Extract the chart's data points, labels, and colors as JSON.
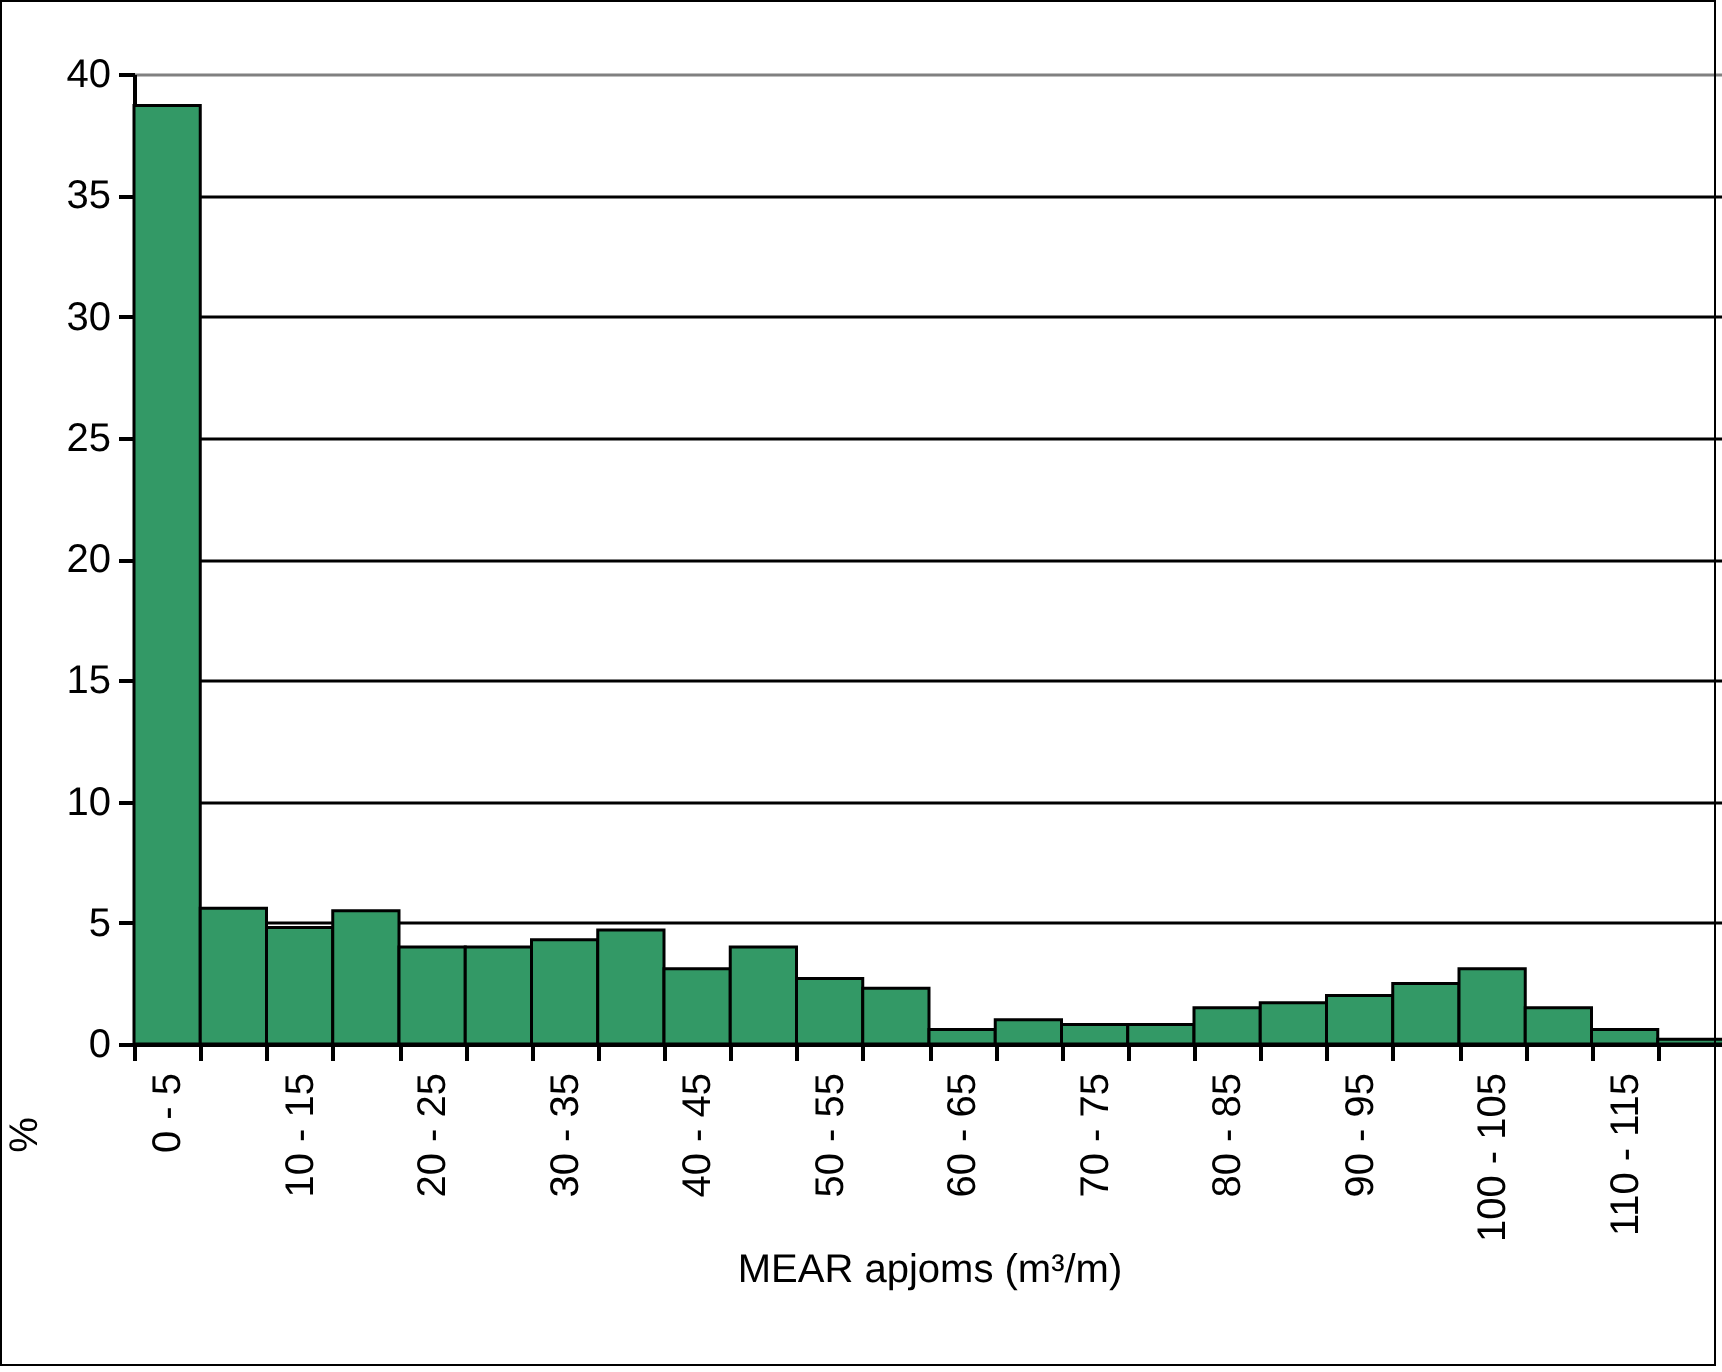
{
  "chart_data": {
    "type": "bar",
    "xlabel": "MEAR apjoms (m³/m)",
    "ylabel": "%",
    "categories": [
      "0 - 5",
      null,
      "10 - 15",
      null,
      "20 - 25",
      null,
      "30 - 35",
      null,
      "40 - 45",
      null,
      "50 - 55",
      null,
      "60 - 65",
      null,
      "70 - 75",
      null,
      "80 - 85",
      null,
      "90 - 95",
      null,
      "100 - 105",
      null,
      "110 - 115",
      null
    ],
    "values": [
      38.7,
      5.6,
      4.8,
      5.5,
      4.0,
      4.0,
      4.3,
      4.7,
      3.1,
      4.0,
      2.7,
      2.3,
      0.6,
      1.0,
      0.8,
      0.8,
      1.5,
      1.7,
      2.0,
      2.5,
      3.1,
      1.5,
      0.6,
      0.2
    ],
    "color": "#339966",
    "ylim": [
      0,
      40
    ],
    "yticks": [
      0,
      5,
      10,
      15,
      20,
      25,
      30,
      35,
      40
    ],
    "grid": "y"
  }
}
